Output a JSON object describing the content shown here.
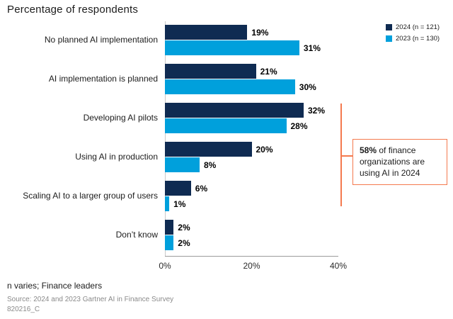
{
  "title": "Percentage of respondents",
  "legend": [
    {
      "label": "2024 (n = 121)",
      "color": "#0f2b52"
    },
    {
      "label": "2023 (n = 130)",
      "color": "#00a0dc"
    }
  ],
  "chart_data": {
    "type": "bar",
    "orientation": "horizontal",
    "title": "Percentage of respondents",
    "categories": [
      "No planned AI implementation",
      "AI implementation is planned",
      "Developing AI pilots",
      "Using AI in production",
      "Scaling AI to a larger group of users",
      "Don’t know"
    ],
    "series": [
      {
        "name": "2024 (n = 121)",
        "color": "#0f2b52",
        "values": [
          19,
          21,
          32,
          20,
          6,
          2
        ]
      },
      {
        "name": "2023 (n = 130)",
        "color": "#00a0dc",
        "values": [
          31,
          30,
          28,
          8,
          1,
          2
        ]
      }
    ],
    "value_suffix": "%",
    "xlim": [
      0,
      40
    ],
    "x_ticks": [
      {
        "label": "0%",
        "value": 0
      },
      {
        "label": "20%",
        "value": 20
      },
      {
        "label": "40%",
        "value": 40
      }
    ],
    "grid": false,
    "legend_position": "top-right",
    "annotation": {
      "highlight": "58%",
      "rest": " of finance organizations are using AI in 2024",
      "color": "#f4794e",
      "covers_categories": [
        "Developing AI pilots",
        "Using AI in production",
        "Scaling AI to a larger group of users"
      ]
    }
  },
  "footer": {
    "note": "n varies; Finance leaders",
    "source": "Source: 2024 and 2023 Gartner AI in Finance Survey",
    "code": "820216_C"
  }
}
